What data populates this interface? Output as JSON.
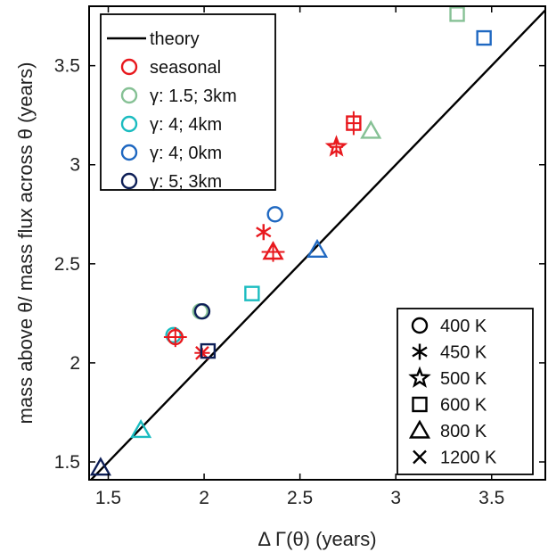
{
  "chart_data": {
    "type": "scatter",
    "xlabel": "Δ Γ(θ) (years)",
    "ylabel": "mass above θ/ mass flux across θ (years)",
    "xlim": [
      1.4,
      3.78
    ],
    "ylim": [
      1.41,
      3.8
    ],
    "xticks": [
      "1.5",
      "2",
      "2.5",
      "3",
      "3.5"
    ],
    "yticks": [
      "1.5",
      "2",
      "2.5",
      "3",
      "3.5"
    ],
    "xtick_values": [
      1.5,
      2,
      2.5,
      3,
      3.5
    ],
    "ytick_values": [
      1.5,
      2,
      2.5,
      3,
      3.5
    ],
    "grid": false,
    "theory_line": {
      "name": "theory",
      "color": "#000000",
      "x": [
        1.4,
        3.78
      ],
      "y": [
        1.4,
        3.78
      ]
    },
    "legend_series": {
      "placement": "top-left",
      "entries": [
        {
          "key": "seasonal",
          "label": "seasonal",
          "color": "#e8191e"
        },
        {
          "key": "g15_3",
          "label": "γ: 1.5; 3km",
          "color": "#86c195"
        },
        {
          "key": "g4_4",
          "label": "γ: 4; 4km",
          "color": "#1bbcc0"
        },
        {
          "key": "g4_0",
          "label": "γ: 4; 0km",
          "color": "#1f68c1"
        },
        {
          "key": "g5_3",
          "label": "γ: 5; 3km",
          "color": "#0e1f57"
        }
      ]
    },
    "legend_markers": {
      "placement": "bottom-right",
      "entries": [
        {
          "marker": "circle",
          "label": "400 K"
        },
        {
          "marker": "asterisk",
          "label": "450 K"
        },
        {
          "marker": "star",
          "label": "500 K"
        },
        {
          "marker": "square",
          "label": "600 K"
        },
        {
          "marker": "triangle",
          "label": "800 K"
        },
        {
          "marker": "x",
          "label": "1200 K"
        }
      ]
    },
    "points": [
      {
        "series": "g15_3",
        "marker": "square",
        "x": 3.32,
        "y": 3.76
      },
      {
        "series": "g4_0",
        "marker": "square",
        "x": 3.46,
        "y": 3.64
      },
      {
        "series": "g15_3",
        "marker": "triangle",
        "x": 2.87,
        "y": 3.17
      },
      {
        "series": "seasonal",
        "marker": "square",
        "x": 2.78,
        "y": 3.21,
        "xerr": 0.04,
        "yerr": 0.06
      },
      {
        "series": "seasonal",
        "marker": "star",
        "x": 2.69,
        "y": 3.09,
        "xerr": 0.035,
        "yerr": 0.05
      },
      {
        "series": "g4_0",
        "marker": "circle",
        "x": 2.37,
        "y": 2.75
      },
      {
        "series": "seasonal",
        "marker": "asterisk",
        "x": 2.31,
        "y": 2.66
      },
      {
        "series": "seasonal",
        "marker": "triangle",
        "x": 2.36,
        "y": 2.56,
        "xerr": 0.06,
        "yerr": 0.05
      },
      {
        "series": "g4_0",
        "marker": "triangle",
        "x": 2.59,
        "y": 2.57
      },
      {
        "series": "g4_4",
        "marker": "square",
        "x": 2.25,
        "y": 2.35
      },
      {
        "series": "g15_3",
        "marker": "circle",
        "x": 1.98,
        "y": 2.26
      },
      {
        "series": "g5_3",
        "marker": "circle",
        "x": 1.99,
        "y": 2.26
      },
      {
        "series": "g4_4",
        "marker": "circle",
        "x": 1.84,
        "y": 2.14
      },
      {
        "series": "seasonal",
        "marker": "circle",
        "x": 1.85,
        "y": 2.13,
        "xerr": 0.06,
        "yerr": 0.05
      },
      {
        "series": "seasonal",
        "marker": "x",
        "x": 1.99,
        "y": 2.05,
        "xerr": 0.04,
        "yerr": 0.025
      },
      {
        "series": "g5_3",
        "marker": "square",
        "x": 2.02,
        "y": 2.06
      },
      {
        "series": "g4_4",
        "marker": "triangle",
        "x": 1.67,
        "y": 1.66
      },
      {
        "series": "g5_3",
        "marker": "triangle",
        "x": 1.46,
        "y": 1.47
      }
    ]
  }
}
